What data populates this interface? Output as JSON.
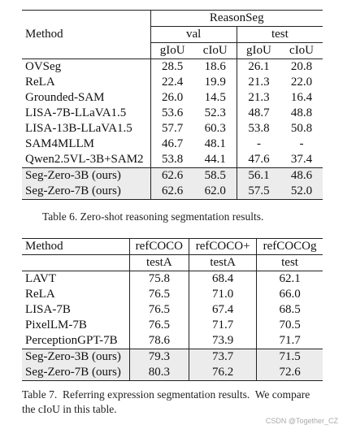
{
  "table6": {
    "method_header": "Method",
    "group_header": "ReasonSeg",
    "splits": [
      "val",
      "test"
    ],
    "metrics": [
      "gIoU",
      "cIoU",
      "gIoU",
      "cIoU"
    ],
    "rows": [
      {
        "method": "OVSeg",
        "values": [
          "28.5",
          "18.6",
          "26.1",
          "20.8"
        ]
      },
      {
        "method": "ReLA",
        "values": [
          "22.4",
          "19.9",
          "21.3",
          "22.0"
        ]
      },
      {
        "method": "Grounded-SAM",
        "values": [
          "26.0",
          "14.5",
          "21.3",
          "16.4"
        ]
      },
      {
        "method": "LISA-7B-LLaVA1.5",
        "values": [
          "53.6",
          "52.3",
          "48.7",
          "48.8"
        ]
      },
      {
        "method": "LISA-13B-LLaVA1.5",
        "values": [
          "57.7",
          "60.3",
          "53.8",
          "50.8"
        ]
      },
      {
        "method": "SAM4MLLM",
        "values": [
          "46.7",
          "48.1",
          "-",
          "-"
        ]
      },
      {
        "method": "Qwen2.5VL-3B+SAM2",
        "values": [
          "53.8",
          "44.1",
          "47.6",
          "37.4"
        ]
      },
      {
        "method": "Seg-Zero-3B (ours)",
        "values": [
          "62.6",
          "58.5",
          "56.1",
          "48.6"
        ]
      },
      {
        "method": "Seg-Zero-7B (ours)",
        "values": [
          "62.6",
          "62.0",
          "57.5",
          "52.0"
        ]
      }
    ],
    "caption": "Table 6. Zero-shot reasoning segmentation results."
  },
  "table7": {
    "method_header": "Method",
    "datasets": [
      "refCOCO",
      "refCOCO+",
      "refCOCOg"
    ],
    "splits": [
      "testA",
      "testA",
      "test"
    ],
    "rows": [
      {
        "method": "LAVT",
        "values": [
          "75.8",
          "68.4",
          "62.1"
        ]
      },
      {
        "method": "ReLA",
        "values": [
          "76.5",
          "71.0",
          "66.0"
        ]
      },
      {
        "method": "LISA-7B",
        "values": [
          "76.5",
          "67.4",
          "68.5"
        ]
      },
      {
        "method": "PixelLM-7B",
        "values": [
          "76.5",
          "71.7",
          "70.5"
        ]
      },
      {
        "method": "PerceptionGPT-7B",
        "values": [
          "78.6",
          "73.9",
          "71.7"
        ]
      },
      {
        "method": "Seg-Zero-3B (ours)",
        "values": [
          "79.3",
          "73.7",
          "71.5"
        ]
      },
      {
        "method": "Seg-Zero-7B (ours)",
        "values": [
          "80.3",
          "76.2",
          "72.6"
        ]
      }
    ],
    "caption_line1": "Table 7.  Referring expression segmentation results.  We compare",
    "caption_line2": "the cIoU in this table."
  },
  "watermark": "CSDN @Together_CZ"
}
